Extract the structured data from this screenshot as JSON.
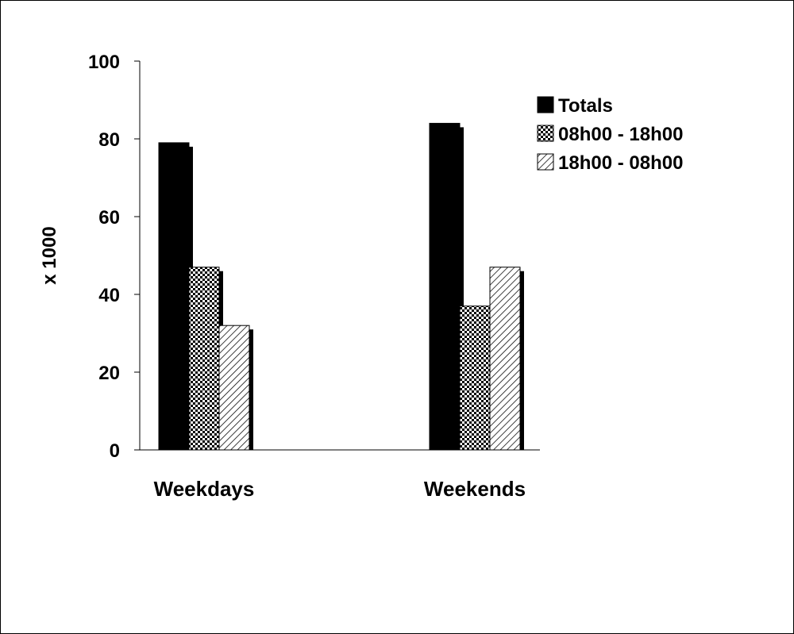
{
  "chart_data": {
    "type": "bar",
    "categories": [
      "Weekdays",
      "Weekends"
    ],
    "series": [
      {
        "name": "Totals",
        "values": [
          79,
          84
        ],
        "pattern": "solid"
      },
      {
        "name": "08h00 - 18h00",
        "values": [
          47,
          37
        ],
        "pattern": "checker"
      },
      {
        "name": "18h00 - 08h00",
        "values": [
          32,
          47
        ],
        "pattern": "diagonal"
      }
    ],
    "title": "",
    "xlabel": "",
    "ylabel": "x 1000",
    "ylim": [
      0,
      100
    ],
    "yticks": [
      "0",
      "20",
      "40",
      "60",
      "80",
      "100"
    ],
    "grid": false,
    "legend_position": "top-right",
    "colors": {
      "bar": "#000000",
      "background": "#ffffff",
      "frame": "#000000"
    }
  }
}
